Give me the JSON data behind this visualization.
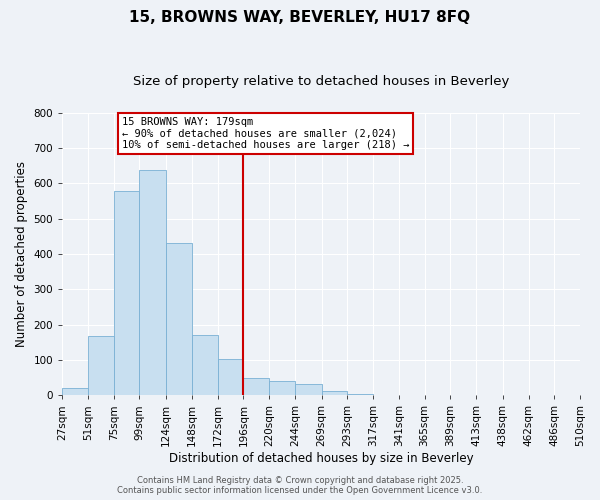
{
  "title": "15, BROWNS WAY, BEVERLEY, HU17 8FQ",
  "subtitle": "Size of property relative to detached houses in Beverley",
  "xlabel": "Distribution of detached houses by size in Beverley",
  "ylabel": "Number of detached properties",
  "footer_line1": "Contains HM Land Registry data © Crown copyright and database right 2025.",
  "footer_line2": "Contains public sector information licensed under the Open Government Licence v3.0.",
  "bin_labels": [
    "27sqm",
    "51sqm",
    "75sqm",
    "99sqm",
    "124sqm",
    "148sqm",
    "172sqm",
    "196sqm",
    "220sqm",
    "244sqm",
    "269sqm",
    "293sqm",
    "317sqm",
    "341sqm",
    "365sqm",
    "389sqm",
    "413sqm",
    "438sqm",
    "462sqm",
    "486sqm",
    "510sqm"
  ],
  "bar_values": [
    20,
    168,
    578,
    638,
    430,
    170,
    102,
    50,
    40,
    33,
    12,
    5,
    2,
    0,
    0,
    0,
    0,
    0,
    0,
    0
  ],
  "bar_color": "#c8dff0",
  "bar_edge_color": "#7ab0d4",
  "vline_x_index": 7,
  "bin_edges": [
    27,
    51,
    75,
    99,
    124,
    148,
    172,
    196,
    220,
    244,
    269,
    293,
    317,
    341,
    365,
    389,
    413,
    438,
    462,
    486,
    510
  ],
  "ylim": [
    0,
    800
  ],
  "yticks": [
    0,
    100,
    200,
    300,
    400,
    500,
    600,
    700,
    800
  ],
  "annotation_title": "15 BROWNS WAY: 179sqm",
  "annotation_line2": "← 90% of detached houses are smaller (2,024)",
  "annotation_line3": "10% of semi-detached houses are larger (218) →",
  "annotation_box_color": "#cc0000",
  "vline_color": "#cc0000",
  "background_color": "#eef2f7",
  "grid_color": "#ffffff",
  "title_fontsize": 11,
  "subtitle_fontsize": 9.5,
  "axis_label_fontsize": 8.5,
  "tick_fontsize": 7.5,
  "annotation_fontsize": 7.5,
  "footer_fontsize": 6
}
